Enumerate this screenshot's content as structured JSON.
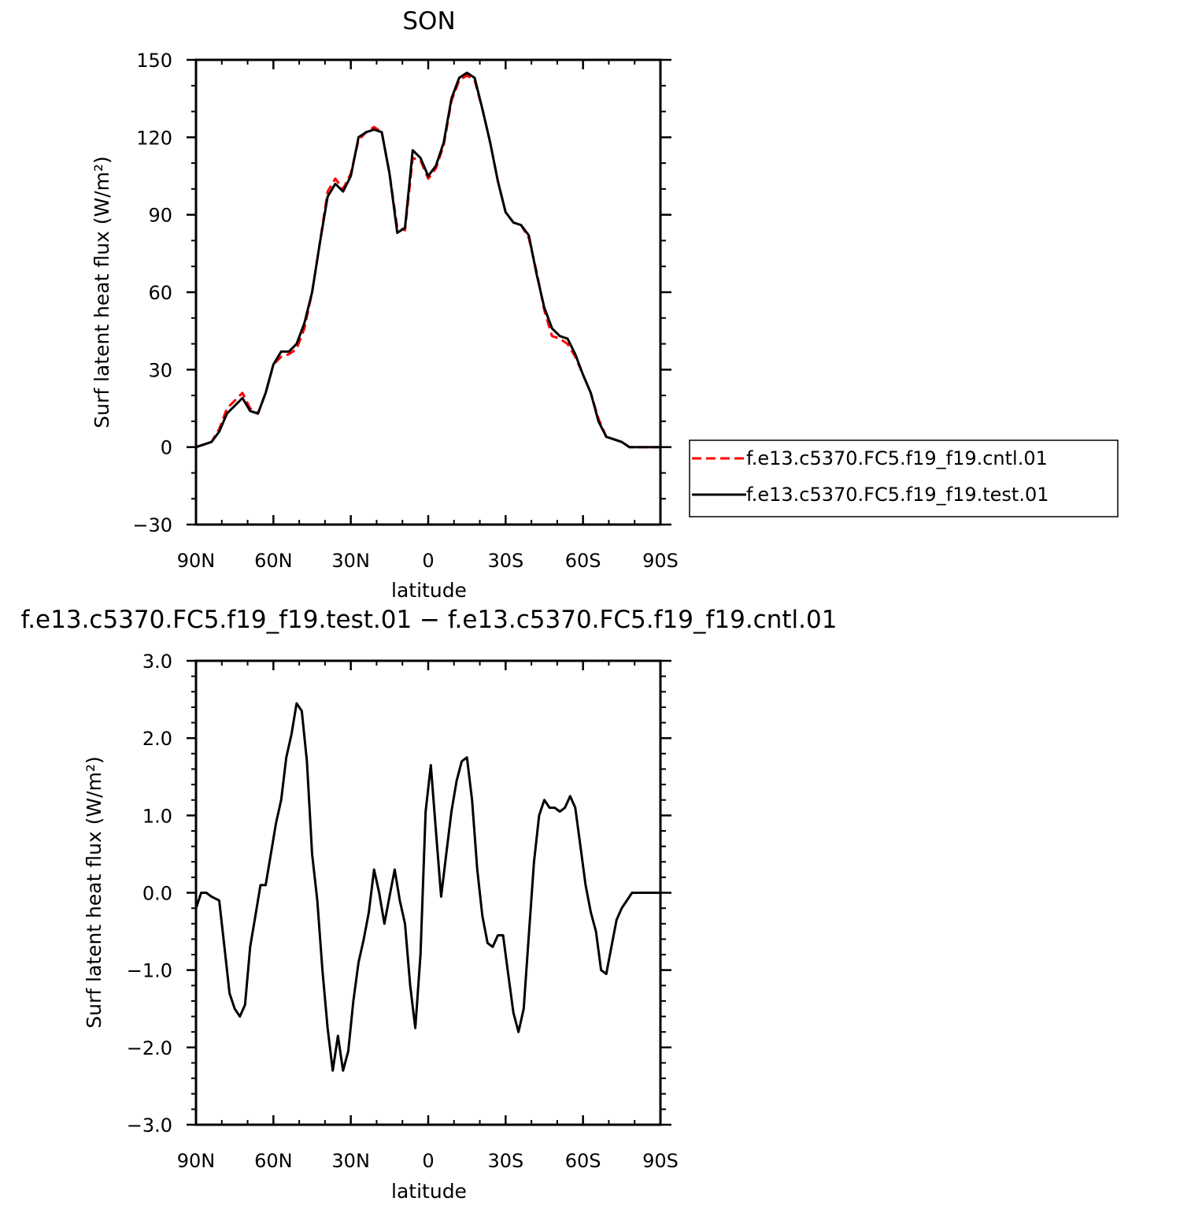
{
  "chart_data": [
    {
      "type": "line",
      "title": "SON",
      "xlabel": "latitude",
      "ylabel": "Surf latent heat flux (W/m²)",
      "ylim": [
        -30,
        150
      ],
      "yticks": [
        "150",
        "120",
        "90",
        "60",
        "30",
        "0",
        "−30"
      ],
      "ytick_values": [
        150,
        120,
        90,
        60,
        30,
        0,
        -30
      ],
      "xlim": [
        90,
        -90
      ],
      "xticks": [
        "90N",
        "60N",
        "30N",
        "0",
        "30S",
        "60S",
        "90S"
      ],
      "xtick_values": [
        90,
        60,
        30,
        0,
        -30,
        -60,
        -90
      ],
      "legend_position": "right",
      "legend": [
        {
          "label": "f.e13.c5370.FC5.f19_f19.cntl.01",
          "color": "#ff0000",
          "style": "dashed"
        },
        {
          "label": "f.e13.c5370.FC5.f19_f19.test.01",
          "color": "#000000",
          "style": "solid"
        }
      ],
      "series": [
        {
          "name": "f.e13.c5370.FC5.f19_f19.cntl.01",
          "color": "#ff0000",
          "style": "dashed",
          "x": [
            90,
            87,
            84,
            81,
            78,
            75,
            72,
            69,
            66,
            63,
            60,
            57,
            54,
            51,
            48,
            45,
            42,
            39,
            36,
            33,
            30,
            27,
            24,
            21,
            18,
            15,
            12,
            9,
            6,
            3,
            0,
            -3,
            -6,
            -9,
            -12,
            -15,
            -18,
            -21,
            -24,
            -27,
            -30,
            -33,
            -36,
            -39,
            -42,
            -45,
            -48,
            -51,
            -54,
            -57,
            -60,
            -63,
            -66,
            -69,
            -72,
            -75,
            -78,
            -81,
            -84,
            -87,
            -90
          ],
          "y": [
            0,
            1,
            2,
            7,
            15,
            18,
            21,
            15,
            13,
            21,
            32,
            35,
            36,
            38,
            46,
            60,
            79,
            99,
            104,
            100,
            106,
            119,
            122,
            124,
            122,
            106,
            85,
            84,
            112,
            111,
            104,
            108,
            117,
            134,
            142,
            144,
            142,
            131,
            118,
            103,
            91,
            87,
            86,
            81,
            68,
            53,
            43,
            42,
            40,
            35,
            28,
            21,
            11,
            4,
            3,
            2,
            0,
            0,
            0,
            0,
            0
          ]
        },
        {
          "name": "f.e13.c5370.FC5.f19_f19.test.01",
          "color": "#000000",
          "style": "solid",
          "x": [
            90,
            87,
            84,
            81,
            78,
            75,
            72,
            69,
            66,
            63,
            60,
            57,
            54,
            51,
            48,
            45,
            42,
            39,
            36,
            33,
            30,
            27,
            24,
            21,
            18,
            15,
            12,
            9,
            6,
            3,
            0,
            -3,
            -6,
            -9,
            -12,
            -15,
            -18,
            -21,
            -24,
            -27,
            -30,
            -33,
            -36,
            -39,
            -42,
            -45,
            -48,
            -51,
            -54,
            -57,
            -60,
            -63,
            -66,
            -69,
            -72,
            -75,
            -78,
            -81,
            -84,
            -87,
            -90
          ],
          "y": [
            0,
            1,
            2,
            6,
            13,
            16,
            19,
            14,
            13,
            21,
            32,
            37,
            37,
            40,
            48,
            60,
            79,
            97,
            102,
            99,
            105,
            120,
            122,
            123,
            122,
            106,
            83,
            85,
            115,
            112,
            105,
            109,
            118,
            135,
            143,
            145,
            143,
            131,
            118,
            103,
            91,
            87,
            86,
            82,
            67,
            54,
            46,
            43,
            42,
            36,
            28,
            21,
            10,
            4,
            3,
            2,
            0,
            0,
            0,
            0,
            0
          ]
        }
      ]
    },
    {
      "type": "line",
      "title": "f.e13.c5370.FC5.f19_f19.test.01 − f.e13.c5370.FC5.f19_f19.cntl.01",
      "xlabel": "latitude",
      "ylabel": "Surf latent heat flux (W/m²)",
      "ylim": [
        -3,
        3
      ],
      "yticks": [
        "3.0",
        "2.0",
        "1.0",
        "0.0",
        "−1.0",
        "−2.0",
        "−3.0"
      ],
      "ytick_values": [
        3,
        2,
        1,
        0,
        -1,
        -2,
        -3
      ],
      "xlim": [
        90,
        -90
      ],
      "xticks": [
        "90N",
        "60N",
        "30N",
        "0",
        "30S",
        "60S",
        "90S"
      ],
      "xtick_values": [
        90,
        60,
        30,
        0,
        -30,
        -60,
        -90
      ],
      "series": [
        {
          "color": "#000000",
          "style": "solid",
          "x": [
            90,
            88,
            86,
            84,
            81,
            79,
            77,
            75,
            73,
            71,
            69,
            67,
            65,
            63,
            61,
            59,
            57,
            55,
            53,
            51,
            49,
            47,
            45,
            43,
            41,
            39,
            37,
            35,
            33,
            31,
            29,
            27,
            25,
            23,
            21,
            19,
            17,
            15,
            13,
            11,
            9,
            7,
            5,
            3,
            1,
            -1,
            -3,
            -5,
            -7,
            -9,
            -11,
            -13,
            -15,
            -17,
            -19,
            -21,
            -23,
            -25,
            -27,
            -29,
            -31,
            -33,
            -35,
            -37,
            -39,
            -41,
            -43,
            -45,
            -47,
            -49,
            -51,
            -53,
            -55,
            -57,
            -59,
            -61,
            -63,
            -65,
            -67,
            -69,
            -71,
            -73,
            -75,
            -77,
            -79,
            -81,
            -83,
            -85,
            -87,
            -90
          ],
          "y": [
            -0.2,
            0.0,
            0.0,
            -0.05,
            -0.1,
            -0.7,
            -1.3,
            -1.5,
            -1.6,
            -1.45,
            -0.7,
            -0.3,
            0.1,
            0.1,
            0.5,
            0.9,
            1.2,
            1.75,
            2.05,
            2.45,
            2.35,
            1.7,
            0.5,
            -0.1,
            -1.0,
            -1.75,
            -2.3,
            -1.85,
            -2.3,
            -2.05,
            -1.4,
            -0.9,
            -0.6,
            -0.25,
            0.3,
            0.0,
            -0.4,
            -0.05,
            0.3,
            -0.1,
            -0.4,
            -1.2,
            -1.75,
            -0.8,
            1.05,
            1.65,
            0.8,
            -0.05,
            0.5,
            1.05,
            1.45,
            1.7,
            1.75,
            1.2,
            0.3,
            -0.3,
            -0.65,
            -0.7,
            -0.55,
            -0.55,
            -1.05,
            -1.55,
            -1.8,
            -1.5,
            -0.55,
            0.4,
            1.0,
            1.2,
            1.1,
            1.1,
            1.05,
            1.1,
            1.25,
            1.1,
            0.6,
            0.1,
            -0.25,
            -0.5,
            -1.0,
            -1.05,
            -0.7,
            -0.35,
            -0.2,
            -0.1,
            0.0,
            0.0,
            0.0,
            0.0,
            0.0,
            0.0
          ]
        }
      ]
    }
  ]
}
